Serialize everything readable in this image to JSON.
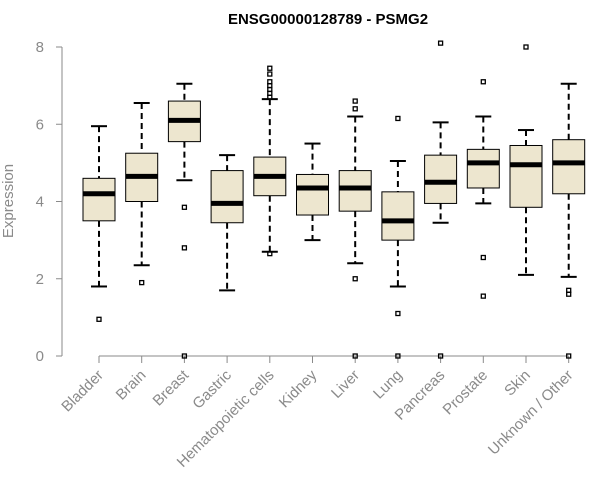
{
  "chart_data": {
    "type": "boxplot",
    "title": "ENSG00000128789 - PSMG2",
    "xlabel": "",
    "ylabel": "Expression",
    "ylim": [
      0,
      8
    ],
    "yticks": [
      0,
      2,
      4,
      6,
      8
    ],
    "box_color": "#ede6cf",
    "categories": [
      "Bladder",
      "Brain",
      "Breast",
      "Gastric",
      "Hematopoietic cells",
      "Kidney",
      "Liver",
      "Lung",
      "Pancreas",
      "Prostate",
      "Skin",
      "Unknown / Other"
    ],
    "series": [
      {
        "name": "Bladder",
        "min": 1.8,
        "q1": 3.5,
        "median": 4.2,
        "q3": 4.6,
        "max": 5.95,
        "outliers": [
          0.95
        ]
      },
      {
        "name": "Brain",
        "min": 2.35,
        "q1": 4.0,
        "median": 4.65,
        "q3": 5.25,
        "max": 6.55,
        "outliers": [
          1.9
        ]
      },
      {
        "name": "Breast",
        "min": 4.55,
        "q1": 5.55,
        "median": 6.1,
        "q3": 6.6,
        "max": 7.05,
        "outliers": [
          3.85,
          2.8,
          0.0
        ]
      },
      {
        "name": "Gastric",
        "min": 1.7,
        "q1": 3.45,
        "median": 3.95,
        "q3": 4.8,
        "max": 5.2,
        "outliers": []
      },
      {
        "name": "Hematopoietic cells",
        "min": 2.7,
        "q1": 4.15,
        "median": 4.65,
        "q3": 5.15,
        "max": 6.65,
        "outliers": [
          7.45,
          7.3,
          7.1,
          7.0,
          6.9,
          6.8,
          6.7,
          2.65
        ]
      },
      {
        "name": "Kidney",
        "min": 3.0,
        "q1": 3.65,
        "median": 4.35,
        "q3": 4.7,
        "max": 5.5,
        "outliers": []
      },
      {
        "name": "Liver",
        "min": 2.4,
        "q1": 3.75,
        "median": 4.35,
        "q3": 4.8,
        "max": 6.2,
        "outliers": [
          6.6,
          6.4,
          2.0,
          0.0
        ]
      },
      {
        "name": "Lung",
        "min": 1.8,
        "q1": 3.0,
        "median": 3.5,
        "q3": 4.25,
        "max": 5.05,
        "outliers": [
          6.15,
          1.1,
          0.0
        ]
      },
      {
        "name": "Pancreas",
        "min": 3.45,
        "q1": 3.95,
        "median": 4.5,
        "q3": 5.2,
        "max": 6.05,
        "outliers": [
          8.1,
          0.0
        ]
      },
      {
        "name": "Prostate",
        "min": 3.95,
        "q1": 4.35,
        "median": 5.0,
        "q3": 5.35,
        "max": 6.2,
        "outliers": [
          7.1,
          2.55,
          1.55
        ]
      },
      {
        "name": "Skin",
        "min": 2.1,
        "q1": 3.85,
        "median": 4.95,
        "q3": 5.45,
        "max": 5.85,
        "outliers": [
          8.0
        ]
      },
      {
        "name": "Unknown / Other",
        "min": 2.05,
        "q1": 4.2,
        "median": 5.0,
        "q3": 5.6,
        "max": 7.05,
        "outliers": [
          1.7,
          1.6,
          0.0
        ]
      }
    ]
  }
}
